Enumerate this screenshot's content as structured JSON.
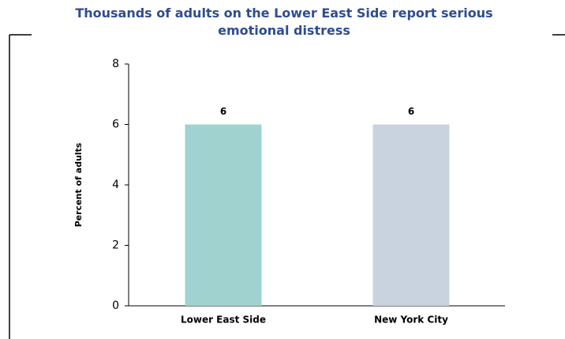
{
  "chart_data": {
    "type": "bar",
    "title": "Thousands of adults on the Lower East Side report serious emotional distress",
    "y_label": "Percent of adults",
    "categories": [
      "Lower East Side",
      "New York City"
    ],
    "values": [
      6,
      6
    ],
    "colors": [
      "#a0d3cf",
      "#c8d3df"
    ],
    "ylim": [
      0,
      8
    ],
    "yticks": [
      0,
      2,
      4,
      6,
      8
    ],
    "grid": false
  }
}
